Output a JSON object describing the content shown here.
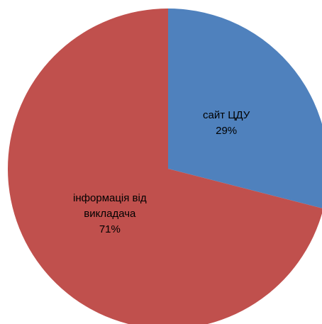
{
  "chart_data": {
    "type": "pie",
    "categories": [
      "сайт ЦДУ",
      "інформація від викладача"
    ],
    "values": [
      29,
      71
    ],
    "value_labels": [
      "29%",
      "71%"
    ],
    "colors": [
      "#4f81bd",
      "#c0504d"
    ]
  }
}
